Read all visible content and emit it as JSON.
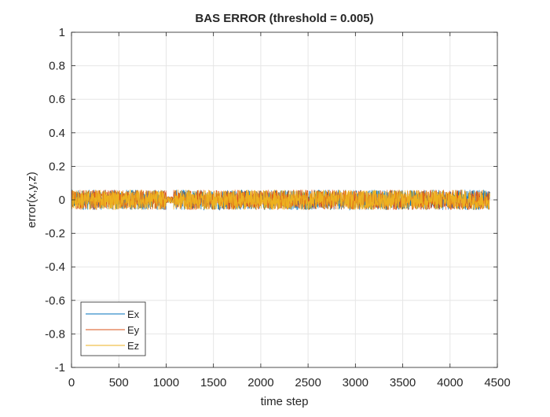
{
  "chart_data": {
    "type": "line",
    "title": "BAS ERROR (threshold = 0.005)",
    "xlabel": "time step",
    "ylabel": "error(x,y,z)",
    "xlim": [
      0,
      4500
    ],
    "ylim": [
      -1,
      1
    ],
    "x_ticks": [
      0,
      500,
      1000,
      1500,
      2000,
      2500,
      3000,
      3500,
      4000,
      4500
    ],
    "x_tick_labels": [
      "0",
      "500",
      "1000",
      "1500",
      "2000",
      "2500",
      "3000",
      "3500",
      "4000",
      "4500"
    ],
    "y_ticks": [
      1,
      0.8,
      0.6,
      0.4,
      0.2,
      0,
      -0.2,
      -0.4,
      -0.6,
      -0.8,
      -1
    ],
    "y_tick_labels": [
      "1",
      "0.8",
      "0.6",
      "0.4",
      "0.2",
      "0",
      "-0.2",
      "-0.4",
      "-0.6",
      "-0.8",
      "-1"
    ],
    "grid": true,
    "legend_position": "bottom-left",
    "x_range_of_data": [
      0,
      4420
    ],
    "series": [
      {
        "name": "Ex",
        "color": "#0072BD",
        "approx_amplitude": 0.06,
        "values_sample": [
          0.03,
          -0.05,
          0.04,
          -0.02,
          0.05,
          -0.04,
          0.01,
          -0.03,
          0.06,
          -0.05
        ]
      },
      {
        "name": "Ey",
        "color": "#D95319",
        "approx_amplitude": 0.06,
        "values_sample": [
          -0.04,
          0.05,
          -0.03,
          0.06,
          -0.02,
          0.04,
          -0.05,
          0.03,
          -0.01,
          0.05
        ]
      },
      {
        "name": "Ez",
        "color": "#EDB120",
        "approx_amplitude": 0.06,
        "values_sample": [
          0.05,
          -0.03,
          0.02,
          -0.06,
          0.04,
          -0.01,
          0.03,
          -0.05,
          0.02,
          -0.04
        ]
      }
    ]
  }
}
